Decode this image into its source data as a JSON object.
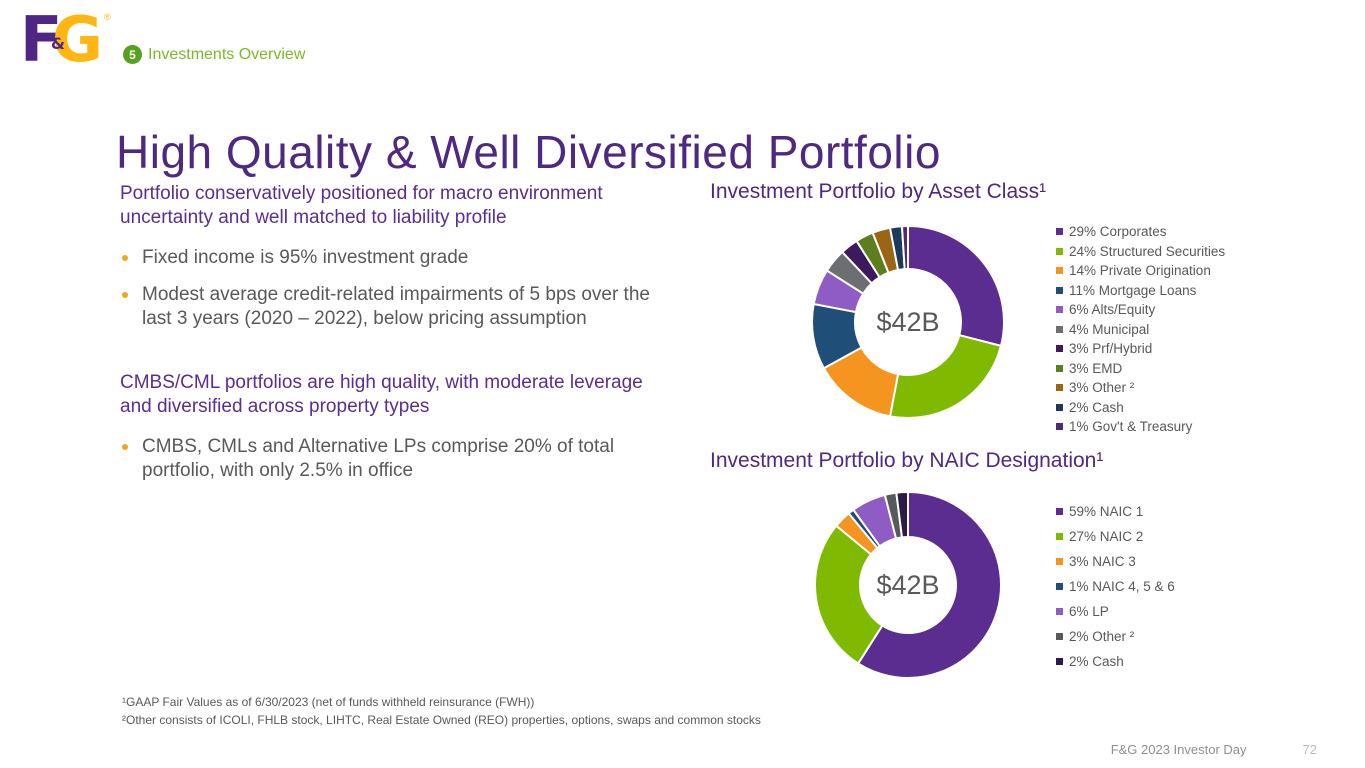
{
  "header": {
    "logo": {
      "letter_f": "F",
      "ampersand": "&",
      "letter_g": "G",
      "registered_mark": "®"
    },
    "section_badge": {
      "number": "5",
      "label": "Investments Overview"
    }
  },
  "title": "High Quality & Well Diversified Portfolio",
  "left_column": {
    "sections": [
      {
        "heading": "Portfolio conservatively positioned for macro environment uncertainty and well matched to liability profile",
        "bullets": [
          "Fixed income is 95% investment grade",
          "Modest average credit-related impairments of 5 bps over the last 3 years (2020 – 2022), below pricing assumption"
        ]
      },
      {
        "heading": "CMBS/CML portfolios are high quality, with moderate leverage and diversified across property types",
        "bullets": [
          "CMBS, CMLs and Alternative LPs comprise 20% of total portfolio, with only 2.5% in office"
        ]
      }
    ]
  },
  "chart_data": [
    {
      "type": "pie",
      "donut": true,
      "title": "Investment Portfolio by Asset Class¹",
      "center_label": "$42B",
      "total_percent": 100,
      "legend_position": "right",
      "segments": [
        {
          "label": "29% Corporates",
          "value": 29,
          "color": "#5C2D91"
        },
        {
          "label": "24% Structured Securities",
          "value": 24,
          "color": "#7FBA00"
        },
        {
          "label": "14% Private Origination",
          "value": 14,
          "color": "#F5941E"
        },
        {
          "label": "11% Mortgage Loans",
          "value": 11,
          "color": "#1F4E79"
        },
        {
          "label": "6% Alts/Equity",
          "value": 6,
          "color": "#8F5BC5"
        },
        {
          "label": "4% Municipal",
          "value": 4,
          "color": "#6D6E71"
        },
        {
          "label": "3% Prf/Hybrid",
          "value": 3,
          "color": "#3B1A5E"
        },
        {
          "label": "3% EMD",
          "value": 3,
          "color": "#5E7D1E"
        },
        {
          "label": "3% Other ²",
          "value": 3,
          "color": "#9C6514"
        },
        {
          "label": "2% Cash",
          "value": 2,
          "color": "#1B3A5C"
        },
        {
          "label": "1% Gov't & Treasury",
          "value": 1,
          "color": "#4E2B76"
        }
      ]
    },
    {
      "type": "pie",
      "donut": true,
      "title": "Investment Portfolio by NAIC Designation¹",
      "center_label": "$42B",
      "total_percent": 100,
      "legend_position": "right",
      "segments": [
        {
          "label": "59% NAIC 1",
          "value": 59,
          "color": "#5C2D91"
        },
        {
          "label": "27% NAIC 2",
          "value": 27,
          "color": "#7FBA00"
        },
        {
          "label": "3% NAIC 3",
          "value": 3,
          "color": "#F5941E"
        },
        {
          "label": "1% NAIC 4, 5 & 6",
          "value": 1,
          "color": "#1F4E79"
        },
        {
          "label": "6% LP",
          "value": 6,
          "color": "#8F5BC5"
        },
        {
          "label": "2% Other ²",
          "value": 2,
          "color": "#58595B"
        },
        {
          "label": "2% Cash",
          "value": 2,
          "color": "#2E1A47"
        }
      ]
    }
  ],
  "footnotes": [
    "¹GAAP Fair Values as of 6/30/2023 (net of funds withheld reinsurance (FWH))",
    "²Other consists of ICOLI, FHLB stock, LIHTC, Real Estate Owned (REO) properties, options, swaps and common stocks"
  ],
  "footer": {
    "label": "F&G 2023 Investor Day",
    "page_number": "72"
  }
}
